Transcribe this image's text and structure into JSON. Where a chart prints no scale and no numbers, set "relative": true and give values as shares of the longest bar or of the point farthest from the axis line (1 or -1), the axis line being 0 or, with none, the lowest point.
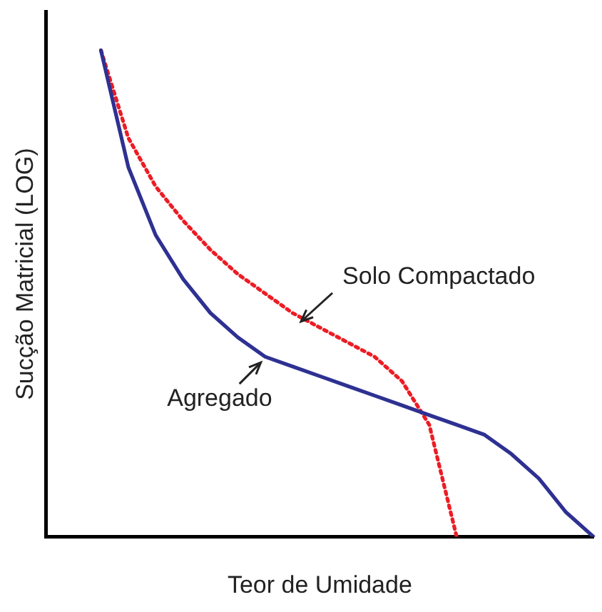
{
  "chart_data": {
    "type": "line",
    "relative": true,
    "xlabel": "Teor de Umidade",
    "ylabel": "Sucção Matricial (LOG)",
    "grid": false,
    "legend": false,
    "marker": "none",
    "categories": [
      null,
      null,
      null,
      null,
      null,
      null,
      null,
      null,
      null,
      null,
      null,
      null,
      null,
      null,
      null,
      null,
      null,
      null,
      null,
      null,
      null
    ],
    "series": [
      {
        "name": "Agregado",
        "color": "#2e3192",
        "line_style": "solid",
        "values": [
          null,
          null,
          1,
          0.76,
          0.62,
          0.53,
          0.46,
          0.41,
          0.37,
          0.35,
          0.33,
          0.31,
          0.29,
          0.27,
          0.25,
          0.23,
          0.21,
          0.17,
          0.12,
          0.05,
          0
        ]
      },
      {
        "name": "Solo Compactado",
        "color": "#ed1c24",
        "line_style": "dotted",
        "values": [
          null,
          null,
          1,
          0.82,
          0.72,
          0.65,
          0.59,
          0.54,
          0.5,
          0.46,
          0.43,
          0.4,
          0.37,
          0.32,
          0.23,
          0,
          null,
          null,
          null,
          null,
          null
        ]
      }
    ]
  }
}
